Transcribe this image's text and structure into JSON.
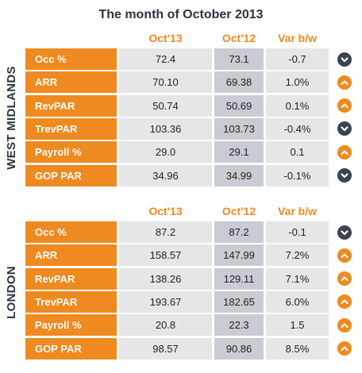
{
  "title": "The month of October 2013",
  "colors": {
    "accent": "#ee8a1f",
    "dark": "#3a4452",
    "cell": "#e5e6e8",
    "cell_dark": "#c9ccd2"
  },
  "sections": [
    {
      "region": "WEST MIDLANDS",
      "headers": [
        "Oct'13",
        "Oct'12",
        "Var b/w"
      ],
      "rows": [
        {
          "label": "Occ %",
          "oct13": "72.4",
          "oct12": "73.1",
          "var": "-0.7",
          "trend": "down",
          "icon": "chevron-down-icon"
        },
        {
          "label": "ARR",
          "oct13": "70.10",
          "oct12": "69.38",
          "var": "1.0%",
          "trend": "up",
          "icon": "chevron-up-icon"
        },
        {
          "label": "RevPAR",
          "oct13": "50.74",
          "oct12": "50.69",
          "var": "0.1%",
          "trend": "up",
          "icon": "chevron-up-icon"
        },
        {
          "label": "TrevPAR",
          "oct13": "103.36",
          "oct12": "103.73",
          "var": "-0.4%",
          "trend": "down",
          "icon": "chevron-down-icon"
        },
        {
          "label": "Payroll %",
          "oct13": "29.0",
          "oct12": "29.1",
          "var": "0.1",
          "trend": "up",
          "icon": "chevron-up-icon"
        },
        {
          "label": "GOP PAR",
          "oct13": "34.96",
          "oct12": "34.99",
          "var": "-0.1%",
          "trend": "down",
          "icon": "chevron-down-icon"
        }
      ]
    },
    {
      "region": "LONDON",
      "headers": [
        "Oct'13",
        "Oct'12",
        "Var b/w"
      ],
      "rows": [
        {
          "label": "Occ %",
          "oct13": "87.2",
          "oct12": "87.2",
          "var": "-0.1",
          "trend": "down",
          "icon": "chevron-down-icon"
        },
        {
          "label": "ARR",
          "oct13": "158.57",
          "oct12": "147.99",
          "var": "7.2%",
          "trend": "up",
          "icon": "chevron-up-icon"
        },
        {
          "label": "RevPAR",
          "oct13": "138.26",
          "oct12": "129.11",
          "var": "7.1%",
          "trend": "up",
          "icon": "chevron-up-icon"
        },
        {
          "label": "TrevPAR",
          "oct13": "193.67",
          "oct12": "182.65",
          "var": "6.0%",
          "trend": "up",
          "icon": "chevron-up-icon"
        },
        {
          "label": "Payroll %",
          "oct13": "20.8",
          "oct12": "22.3",
          "var": "1.5",
          "trend": "up",
          "icon": "chevron-up-icon"
        },
        {
          "label": "GOP PAR",
          "oct13": "98.57",
          "oct12": "90.86",
          "var": "8.5%",
          "trend": "up",
          "icon": "chevron-up-icon"
        }
      ]
    }
  ]
}
